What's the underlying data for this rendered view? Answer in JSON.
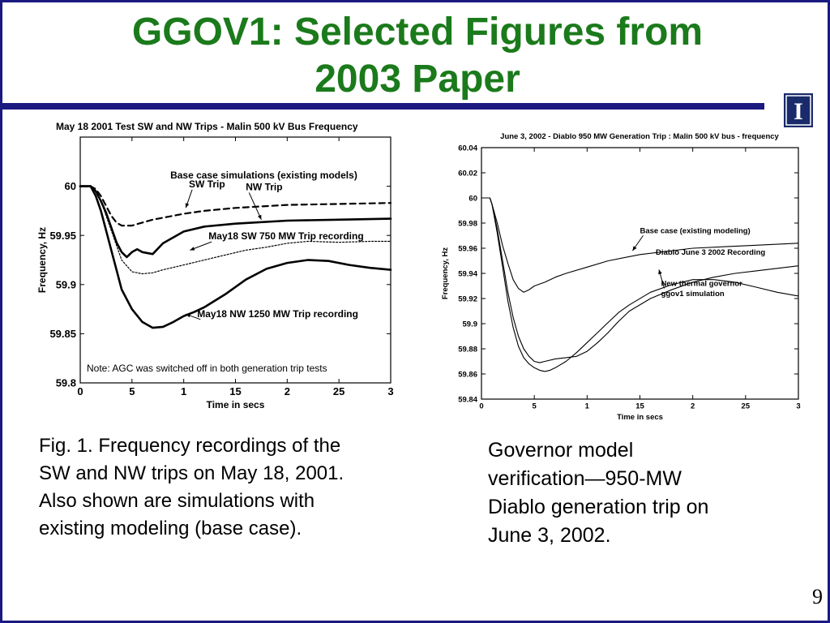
{
  "slide": {
    "title_line1": "GGOV1: Selected Figures from",
    "title_line2": "2003 Paper",
    "page_number": "9",
    "logo_letter": "I",
    "colors": {
      "title": "#1b7a1b",
      "bar": "#1a1a80",
      "logo_bg": "#1a2b6b",
      "logo_fg": "#ffffff",
      "ink": "#000000"
    }
  },
  "captions": {
    "left": [
      "Fig. 1. Frequency recordings of the",
      "SW and NW trips on May 18, 2001.",
      "Also shown are simulations with",
      "existing modeling (base case)."
    ],
    "right": [
      "Governor model",
      "verification—950-MW",
      "Diablo generation trip on",
      "June 3, 2002."
    ]
  },
  "chart_data": [
    {
      "type": "line",
      "title": "May 18 2001 Test SW and NW Trips - Malin 500 kV Bus Frequency",
      "xlabel": "Time in secs",
      "ylabel": "Frequency, Hz",
      "xlim": [
        0,
        30
      ],
      "ylim": [
        59.8,
        60.05
      ],
      "xticks": [
        0,
        5,
        10,
        15,
        20,
        25,
        30
      ],
      "yticks": [
        59.8,
        59.85,
        59.9,
        59.95,
        60
      ],
      "grid": false,
      "note": "Note: AGC was switched off in both generation trip tests",
      "annotations": [
        {
          "text": "Base case simulations (existing models)",
          "x": 8.7,
          "y": 60.008,
          "arrow_to": null
        },
        {
          "text": "SW Trip",
          "x": 10.5,
          "y": 59.999,
          "arrow_to": [
            10.2,
            59.978
          ]
        },
        {
          "text": "NW Trip",
          "x": 16,
          "y": 59.996,
          "arrow_to": [
            17.5,
            59.966
          ]
        },
        {
          "text": "May18 SW 750 MW Trip recording",
          "x": 12.4,
          "y": 59.946,
          "arrow_to": [
            10.6,
            59.935
          ]
        },
        {
          "text": "May18 NW 1250 MW Trip recording",
          "x": 11.3,
          "y": 59.867,
          "arrow_to": [
            10.2,
            59.87
          ]
        }
      ],
      "series": [
        {
          "name": "SW Trip",
          "style": "dashed",
          "x": [
            0,
            1,
            1.5,
            2,
            2.5,
            3,
            3.5,
            4,
            4.5,
            5,
            6,
            7,
            8,
            10,
            12,
            15,
            20,
            25,
            30
          ],
          "y": [
            60,
            60,
            59.997,
            59.99,
            59.98,
            59.97,
            59.963,
            59.96,
            59.96,
            59.96,
            59.963,
            59.966,
            59.968,
            59.972,
            59.975,
            59.978,
            59.981,
            59.982,
            59.983
          ]
        },
        {
          "name": "NW Trip",
          "style": "solid-thick",
          "x": [
            0,
            1,
            1.5,
            2,
            2.5,
            3,
            3.5,
            4,
            4.5,
            5,
            5.5,
            6,
            7,
            8,
            9,
            10,
            12,
            15,
            20,
            25,
            30
          ],
          "y": [
            60,
            60,
            59.995,
            59.985,
            59.973,
            59.958,
            59.943,
            59.933,
            59.928,
            59.933,
            59.936,
            59.933,
            59.931,
            59.942,
            59.948,
            59.954,
            59.959,
            59.962,
            59.965,
            59.966,
            59.967
          ]
        },
        {
          "name": "May18 SW 750 MW Trip recording",
          "style": "dotted",
          "x": [
            0,
            1,
            1.5,
            2,
            2.5,
            3,
            3.5,
            4,
            5,
            6,
            7,
            8,
            10,
            12,
            14,
            16,
            18,
            20,
            22,
            25,
            28,
            30
          ],
          "y": [
            60,
            60,
            59.995,
            59.985,
            59.97,
            59.955,
            59.94,
            59.925,
            59.913,
            59.911,
            59.912,
            59.915,
            59.92,
            59.925,
            59.93,
            59.935,
            59.938,
            59.942,
            59.944,
            59.943,
            59.944,
            59.944
          ]
        },
        {
          "name": "May18 NW 1250 MW Trip recording",
          "style": "solid-thick",
          "x": [
            0,
            1,
            1.5,
            2,
            2.5,
            3,
            3.5,
            4,
            5,
            6,
            7,
            8,
            9,
            10,
            11,
            12,
            14,
            16,
            18,
            20,
            22,
            24,
            26,
            28,
            30
          ],
          "y": [
            60,
            60,
            59.99,
            59.975,
            59.955,
            59.935,
            59.915,
            59.895,
            59.875,
            59.862,
            59.856,
            59.857,
            59.862,
            59.868,
            59.872,
            59.877,
            59.89,
            59.905,
            59.916,
            59.922,
            59.925,
            59.924,
            59.92,
            59.917,
            59.915
          ]
        }
      ]
    },
    {
      "type": "line",
      "title": "June 3, 2002 - Diablo 950 MW Generation Trip : Malin 500 kV bus - frequency",
      "xlabel": "Time in secs",
      "ylabel": "Frequency, Hz",
      "xlim": [
        0,
        30
      ],
      "ylim": [
        59.84,
        60.04
      ],
      "xticks": [
        0,
        5,
        10,
        15,
        20,
        25,
        30
      ],
      "yticks": [
        59.84,
        59.86,
        59.88,
        59.9,
        59.92,
        59.94,
        59.96,
        59.98,
        60,
        60.02,
        60.04
      ],
      "grid": false,
      "annotations": [
        {
          "text": "Base case (existing modeling)",
          "x": 15,
          "y": 59.972,
          "arrow_to": [
            14.3,
            59.958
          ]
        },
        {
          "text": "Diablo June 3 2002 Recording",
          "x": 16.5,
          "y": 59.955,
          "arrow_to": null
        },
        {
          "text": "New thermal governor",
          "x": 17,
          "y": 59.93,
          "arrow_to": [
            16.8,
            59.943
          ]
        },
        {
          "text": "ggov1 simulation",
          "x": 17,
          "y": 59.922,
          "arrow_to": null
        }
      ],
      "series": [
        {
          "name": "Base case (existing modeling)",
          "style": "solid",
          "x": [
            0,
            0.8,
            1,
            1.5,
            2,
            2.5,
            3,
            3.5,
            4,
            4.5,
            5,
            6,
            7,
            8,
            10,
            12,
            15,
            20,
            25,
            30
          ],
          "y": [
            60,
            60,
            59.995,
            59.98,
            59.962,
            59.948,
            59.935,
            59.928,
            59.925,
            59.927,
            59.93,
            59.933,
            59.937,
            59.94,
            59.945,
            59.95,
            59.955,
            59.96,
            59.962,
            59.964
          ]
        },
        {
          "name": "Diablo June 3 2002 Recording",
          "style": "solid",
          "x": [
            0,
            0.8,
            1,
            1.5,
            2,
            2.5,
            3,
            3.5,
            4,
            4.5,
            5,
            5.5,
            6,
            7,
            8,
            9,
            10,
            11,
            12,
            13,
            14,
            16,
            18,
            20,
            22,
            24,
            26,
            28,
            30
          ],
          "y": [
            60,
            60,
            59.995,
            59.975,
            59.95,
            59.925,
            59.905,
            59.89,
            59.88,
            59.874,
            59.87,
            59.869,
            59.87,
            59.872,
            59.873,
            59.874,
            59.878,
            59.885,
            59.893,
            59.902,
            59.91,
            59.92,
            59.927,
            59.933,
            59.937,
            59.94,
            59.942,
            59.944,
            59.946
          ]
        },
        {
          "name": "New thermal governor ggov1 simulation",
          "style": "solid",
          "x": [
            0,
            0.8,
            1,
            1.5,
            2,
            2.5,
            3,
            3.5,
            4,
            4.5,
            5,
            5.5,
            6,
            6.5,
            7,
            8,
            9,
            10,
            11,
            12,
            13,
            14,
            16,
            18,
            20,
            22,
            24,
            26,
            28,
            30
          ],
          "y": [
            60,
            60,
            59.995,
            59.972,
            59.945,
            59.918,
            59.897,
            59.882,
            59.873,
            59.868,
            59.865,
            59.863,
            59.862,
            59.863,
            59.865,
            59.87,
            59.877,
            59.885,
            59.893,
            59.901,
            59.909,
            59.915,
            59.925,
            59.931,
            59.935,
            59.935,
            59.933,
            59.929,
            59.925,
            59.922
          ]
        }
      ]
    }
  ]
}
